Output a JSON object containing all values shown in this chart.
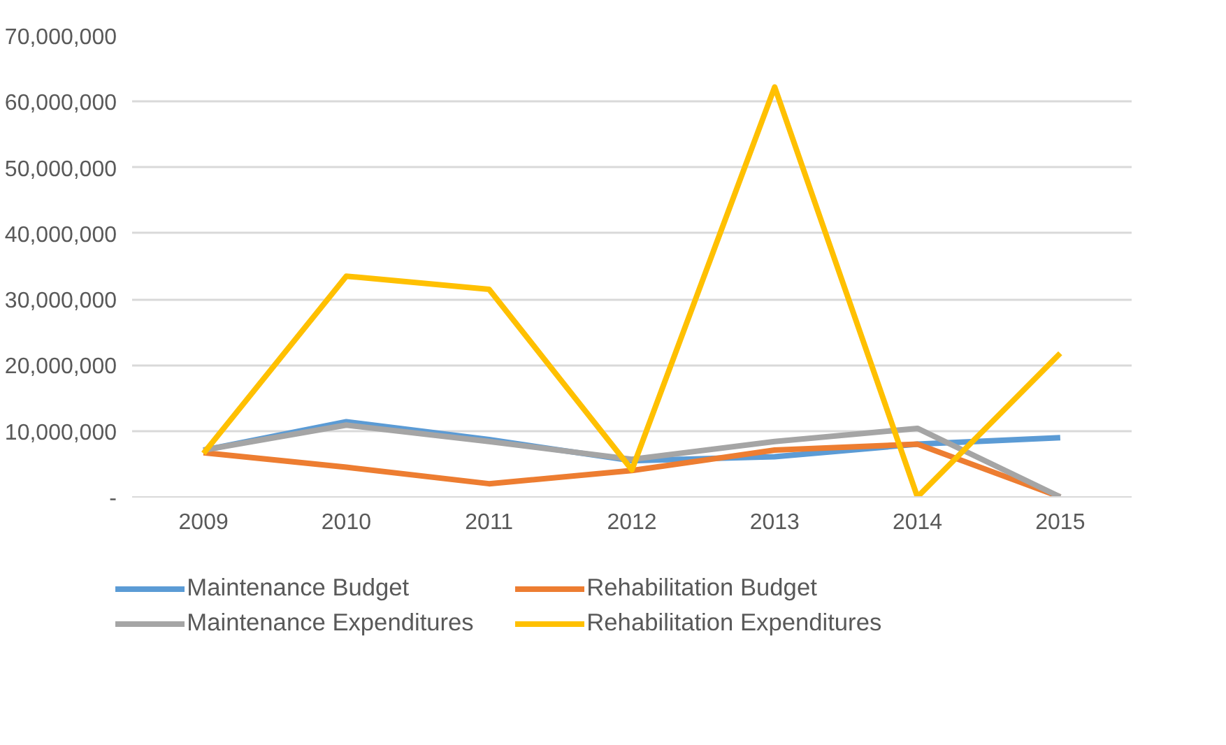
{
  "chart_data": {
    "type": "line",
    "categories": [
      "2009",
      "2010",
      "2011",
      "2012",
      "2013",
      "2014",
      "2015"
    ],
    "series": [
      {
        "name": "Maintenance Budget",
        "color": "#5b9bd5",
        "values": [
          7100000,
          11400000,
          8700000,
          5500000,
          6100000,
          8000000,
          9000000
        ]
      },
      {
        "name": "Rehabilitation Budget",
        "color": "#ed7d31",
        "values": [
          6700000,
          4500000,
          2000000,
          4000000,
          7100000,
          8000000,
          0
        ]
      },
      {
        "name": "Maintenance Expenditures",
        "color": "#a5a5a5",
        "values": [
          7100000,
          10900000,
          8400000,
          5700000,
          8400000,
          10400000,
          0
        ]
      },
      {
        "name": "Rehabilitation Expenditures",
        "color": "#ffc000",
        "values": [
          6600000,
          33500000,
          31500000,
          4100000,
          62200000,
          0,
          21800000
        ]
      }
    ],
    "ylim": [
      0,
      70000000
    ],
    "yticks": [
      {
        "value": 0,
        "label": "-"
      },
      {
        "value": 10000000,
        "label": "10,000,000"
      },
      {
        "value": 20000000,
        "label": "20,000,000"
      },
      {
        "value": 30000000,
        "label": "30,000,000"
      },
      {
        "value": 40000000,
        "label": "40,000,000"
      },
      {
        "value": 50000000,
        "label": "50,000,000"
      },
      {
        "value": 60000000,
        "label": "60,000,000"
      },
      {
        "value": 70000000,
        "label": "70,000,000"
      }
    ],
    "grid": "y",
    "legend": "bottom",
    "marker": "none",
    "line_style": "solid"
  }
}
